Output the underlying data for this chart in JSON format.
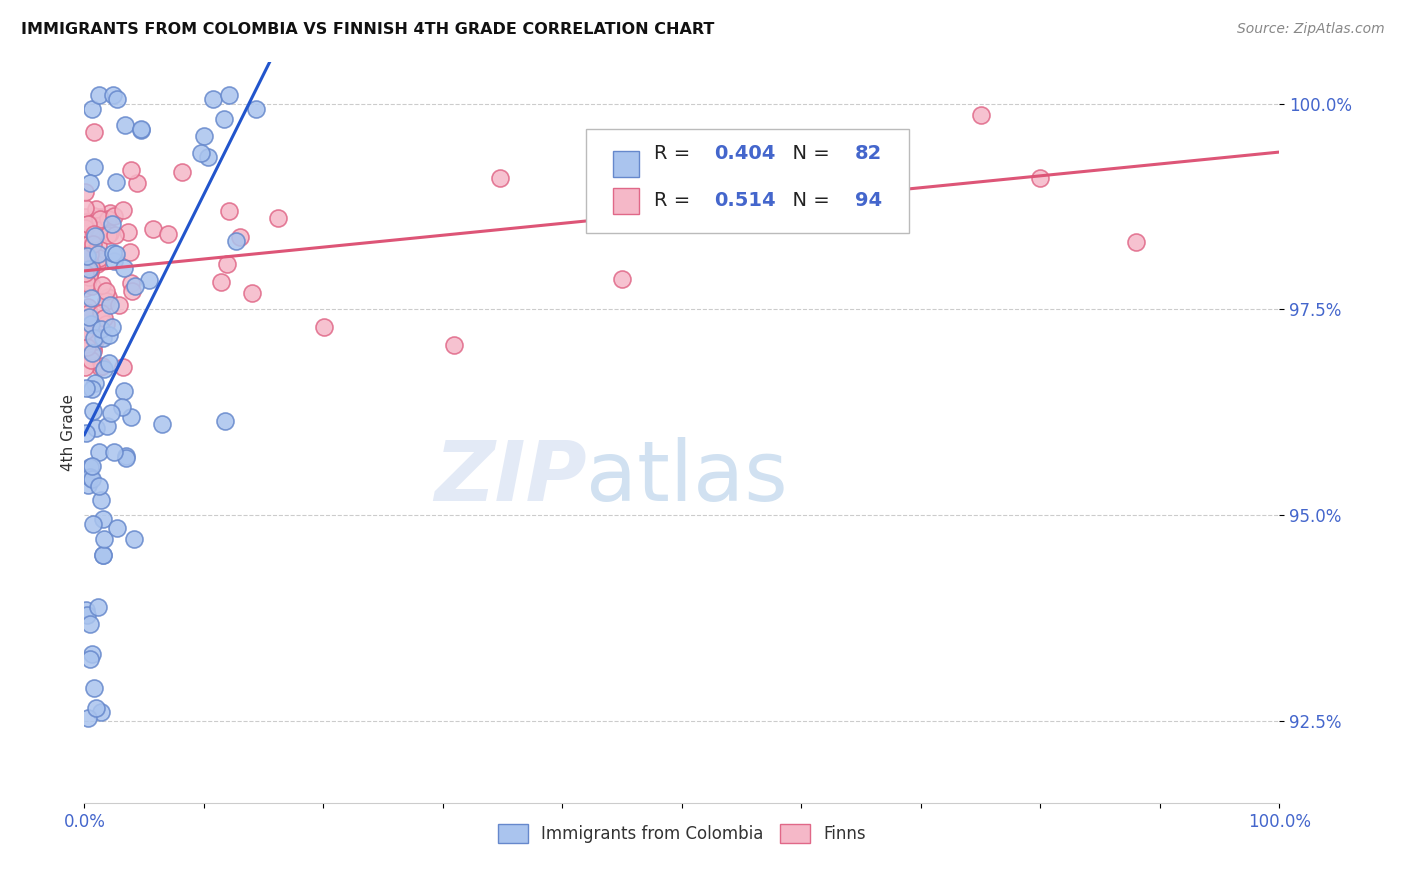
{
  "title": "IMMIGRANTS FROM COLOMBIA VS FINNISH 4TH GRADE CORRELATION CHART",
  "source": "Source: ZipAtlas.com",
  "ylabel": "4th Grade",
  "xlim": [
    0.0,
    1.0
  ],
  "ylim": [
    0.915,
    1.005
  ],
  "y_ticks": [
    0.925,
    0.95,
    0.975,
    1.0
  ],
  "y_tick_labels": [
    "92.5%",
    "95.0%",
    "97.5%",
    "100.0%"
  ],
  "legend_labels": [
    "Immigrants from Colombia",
    "Finns"
  ],
  "colombia_color": "#aac4ee",
  "finns_color": "#f5b8c8",
  "colombia_edge_color": "#6688cc",
  "finns_edge_color": "#e06888",
  "trendline_colombia_color": "#2255cc",
  "trendline_finns_color": "#dd5577",
  "R_colombia": 0.404,
  "N_colombia": 82,
  "R_finns": 0.514,
  "N_finns": 94,
  "axis_color": "#4466cc",
  "grid_color": "#cccccc",
  "title_color": "#111111",
  "source_color": "#888888"
}
